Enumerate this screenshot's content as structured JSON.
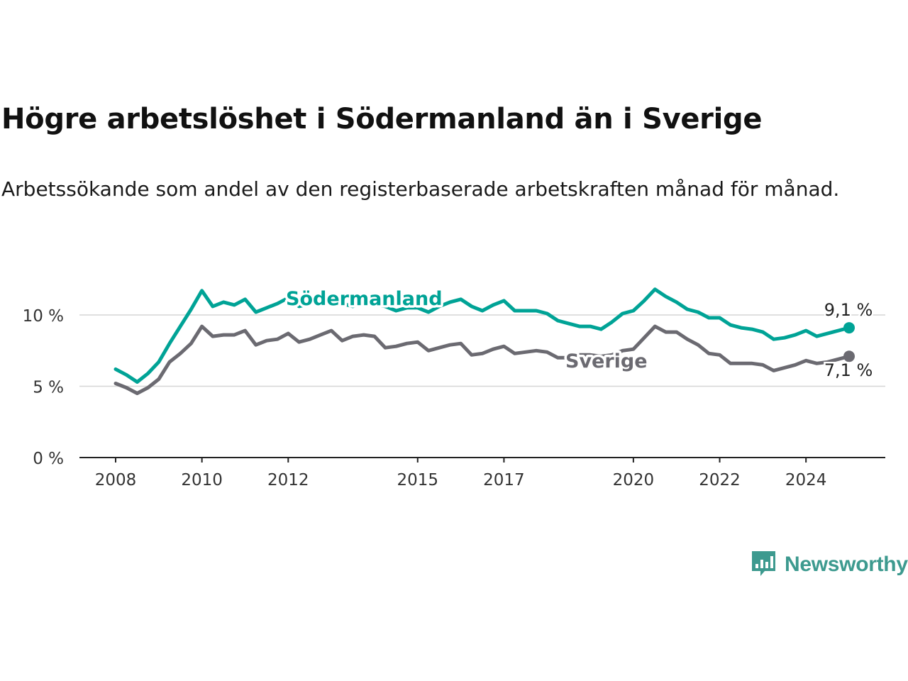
{
  "title": "Högre arbetslöshet i Södermanland än i Sverige",
  "subtitle": "Arbetssökande som andel av den registerbaserade arbetskraften månad för månad.",
  "brand": "Newsworthy",
  "colors": {
    "sodermanland": "#00a396",
    "sverige": "#6b6a71",
    "brand": "#3d9a8f"
  },
  "chart_data": {
    "type": "line",
    "title": "Högre arbetslöshet i Södermanland än i Sverige",
    "subtitle": "Arbetssökande som andel av den registerbaserade arbetskraften månad för månad.",
    "xlabel": "",
    "ylabel": "",
    "xlim": [
      2008,
      2025.0
    ],
    "ylim": [
      0,
      12
    ],
    "x_ticks": [
      {
        "value": 2008,
        "label": "2008"
      },
      {
        "value": 2010,
        "label": "2010"
      },
      {
        "value": 2012,
        "label": "2012"
      },
      {
        "value": 2015,
        "label": "2015"
      },
      {
        "value": 2017,
        "label": "2017"
      },
      {
        "value": 2020,
        "label": "2020"
      },
      {
        "value": 2022,
        "label": "2022"
      },
      {
        "value": 2024,
        "label": "2024"
      }
    ],
    "y_ticks": [
      {
        "value": 0,
        "label": "0 %"
      },
      {
        "value": 5,
        "label": "5 %"
      },
      {
        "value": 10,
        "label": "10 %"
      }
    ],
    "grid": true,
    "legend": "direct labels",
    "series": [
      {
        "name": "Södermanland",
        "end_label": "9,1 %",
        "points": [
          [
            2008.0,
            6.2
          ],
          [
            2008.25,
            5.8
          ],
          [
            2008.5,
            5.3
          ],
          [
            2008.75,
            5.9
          ],
          [
            2009.0,
            6.7
          ],
          [
            2009.25,
            8.0
          ],
          [
            2009.5,
            9.2
          ],
          [
            2009.75,
            10.4
          ],
          [
            2010.0,
            11.7
          ],
          [
            2010.25,
            10.6
          ],
          [
            2010.5,
            10.9
          ],
          [
            2010.75,
            10.7
          ],
          [
            2011.0,
            11.1
          ],
          [
            2011.25,
            10.2
          ],
          [
            2011.5,
            10.5
          ],
          [
            2011.75,
            10.8
          ],
          [
            2012.0,
            11.2
          ],
          [
            2012.25,
            10.6
          ],
          [
            2012.5,
            10.8
          ],
          [
            2012.75,
            11.0
          ],
          [
            2013.0,
            11.2
          ],
          [
            2013.25,
            10.8
          ],
          [
            2013.5,
            10.6
          ],
          [
            2013.75,
            11.0
          ],
          [
            2014.0,
            10.8
          ],
          [
            2014.25,
            10.6
          ],
          [
            2014.5,
            10.3
          ],
          [
            2014.75,
            10.5
          ],
          [
            2015.0,
            10.5
          ],
          [
            2015.25,
            10.2
          ],
          [
            2015.5,
            10.6
          ],
          [
            2015.75,
            10.9
          ],
          [
            2016.0,
            11.1
          ],
          [
            2016.25,
            10.6
          ],
          [
            2016.5,
            10.3
          ],
          [
            2016.75,
            10.7
          ],
          [
            2017.0,
            11.0
          ],
          [
            2017.25,
            10.3
          ],
          [
            2017.5,
            10.3
          ],
          [
            2017.75,
            10.3
          ],
          [
            2018.0,
            10.1
          ],
          [
            2018.25,
            9.6
          ],
          [
            2018.5,
            9.4
          ],
          [
            2018.75,
            9.2
          ],
          [
            2019.0,
            9.2
          ],
          [
            2019.25,
            9.0
          ],
          [
            2019.5,
            9.5
          ],
          [
            2019.75,
            10.1
          ],
          [
            2020.0,
            10.3
          ],
          [
            2020.25,
            11.0
          ],
          [
            2020.5,
            11.8
          ],
          [
            2020.75,
            11.3
          ],
          [
            2021.0,
            10.9
          ],
          [
            2021.25,
            10.4
          ],
          [
            2021.5,
            10.2
          ],
          [
            2021.75,
            9.8
          ],
          [
            2022.0,
            9.8
          ],
          [
            2022.25,
            9.3
          ],
          [
            2022.5,
            9.1
          ],
          [
            2022.75,
            9.0
          ],
          [
            2023.0,
            8.8
          ],
          [
            2023.25,
            8.3
          ],
          [
            2023.5,
            8.4
          ],
          [
            2023.75,
            8.6
          ],
          [
            2024.0,
            8.9
          ],
          [
            2024.25,
            8.5
          ],
          [
            2024.5,
            8.7
          ],
          [
            2024.75,
            8.9
          ],
          [
            2025.0,
            9.1
          ]
        ]
      },
      {
        "name": "Sverige",
        "end_label": "7,1 %",
        "points": [
          [
            2008.0,
            5.2
          ],
          [
            2008.25,
            4.9
          ],
          [
            2008.5,
            4.5
          ],
          [
            2008.75,
            4.9
          ],
          [
            2009.0,
            5.5
          ],
          [
            2009.25,
            6.7
          ],
          [
            2009.5,
            7.3
          ],
          [
            2009.75,
            8.0
          ],
          [
            2010.0,
            9.2
          ],
          [
            2010.25,
            8.5
          ],
          [
            2010.5,
            8.6
          ],
          [
            2010.75,
            8.6
          ],
          [
            2011.0,
            8.9
          ],
          [
            2011.25,
            7.9
          ],
          [
            2011.5,
            8.2
          ],
          [
            2011.75,
            8.3
          ],
          [
            2012.0,
            8.7
          ],
          [
            2012.25,
            8.1
          ],
          [
            2012.5,
            8.3
          ],
          [
            2012.75,
            8.6
          ],
          [
            2013.0,
            8.9
          ],
          [
            2013.25,
            8.2
          ],
          [
            2013.5,
            8.5
          ],
          [
            2013.75,
            8.6
          ],
          [
            2014.0,
            8.5
          ],
          [
            2014.25,
            7.7
          ],
          [
            2014.5,
            7.8
          ],
          [
            2014.75,
            8.0
          ],
          [
            2015.0,
            8.1
          ],
          [
            2015.25,
            7.5
          ],
          [
            2015.5,
            7.7
          ],
          [
            2015.75,
            7.9
          ],
          [
            2016.0,
            8.0
          ],
          [
            2016.25,
            7.2
          ],
          [
            2016.5,
            7.3
          ],
          [
            2016.75,
            7.6
          ],
          [
            2017.0,
            7.8
          ],
          [
            2017.25,
            7.3
          ],
          [
            2017.5,
            7.4
          ],
          [
            2017.75,
            7.5
          ],
          [
            2018.0,
            7.4
          ],
          [
            2018.25,
            7.0
          ],
          [
            2018.5,
            7.0
          ],
          [
            2018.75,
            7.2
          ],
          [
            2019.0,
            7.2
          ],
          [
            2019.25,
            7.1
          ],
          [
            2019.5,
            7.2
          ],
          [
            2019.75,
            7.5
          ],
          [
            2020.0,
            7.6
          ],
          [
            2020.25,
            8.4
          ],
          [
            2020.5,
            9.2
          ],
          [
            2020.75,
            8.8
          ],
          [
            2021.0,
            8.8
          ],
          [
            2021.25,
            8.3
          ],
          [
            2021.5,
            7.9
          ],
          [
            2021.75,
            7.3
          ],
          [
            2022.0,
            7.2
          ],
          [
            2022.25,
            6.6
          ],
          [
            2022.5,
            6.6
          ],
          [
            2022.75,
            6.6
          ],
          [
            2023.0,
            6.5
          ],
          [
            2023.25,
            6.1
          ],
          [
            2023.5,
            6.3
          ],
          [
            2023.75,
            6.5
          ],
          [
            2024.0,
            6.8
          ],
          [
            2024.25,
            6.6
          ],
          [
            2024.5,
            6.7
          ],
          [
            2024.75,
            6.9
          ],
          [
            2025.0,
            7.1
          ]
        ]
      }
    ]
  }
}
